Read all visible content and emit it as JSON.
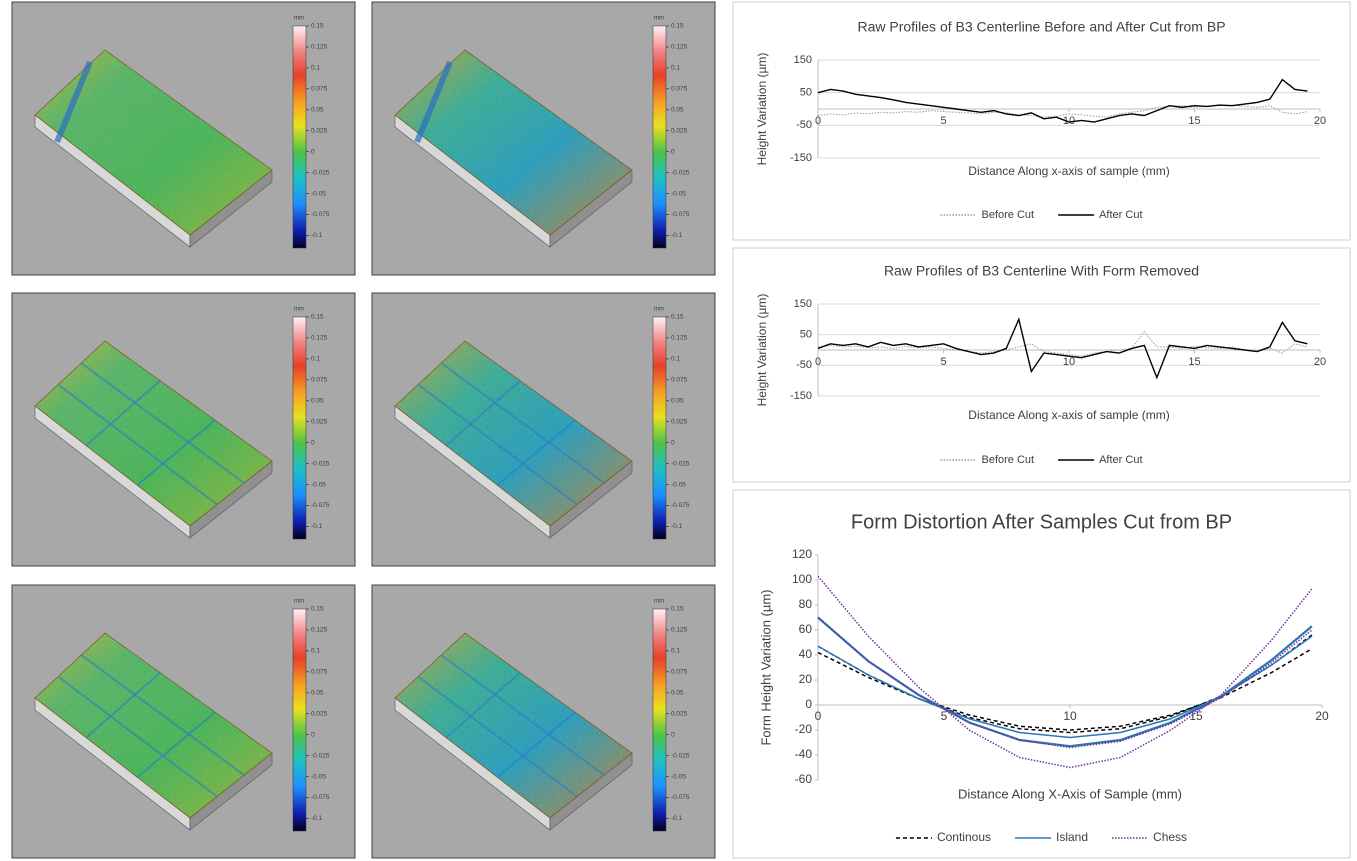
{
  "chart_data": [
    {
      "type": "surface",
      "colorbar_label": "mm",
      "clim": [
        -0.115,
        0.15
      ],
      "cticks": [
        0.15,
        0.125,
        0.1,
        0.075,
        0.05,
        0.025,
        0,
        -0.025,
        -0.05,
        -0.075,
        -0.1
      ]
    },
    {
      "type": "surface",
      "colorbar_label": "mm",
      "clim": [
        -0.115,
        0.15
      ],
      "cticks": [
        0.15,
        0.125,
        0.1,
        0.075,
        0.05,
        0.025,
        0,
        -0.025,
        -0.05,
        -0.075,
        -0.1
      ]
    },
    {
      "type": "surface",
      "colorbar_label": "mm",
      "clim": [
        -0.115,
        0.15
      ],
      "cticks": [
        0.15,
        0.125,
        0.1,
        0.075,
        0.05,
        0.025,
        0,
        -0.025,
        -0.05,
        -0.075,
        -0.1
      ]
    },
    {
      "type": "surface",
      "colorbar_label": "mm",
      "clim": [
        -0.115,
        0.15
      ],
      "cticks": [
        0.15,
        0.125,
        0.1,
        0.075,
        0.05,
        0.025,
        0,
        -0.025,
        -0.05,
        -0.075,
        -0.1
      ]
    },
    {
      "type": "surface",
      "colorbar_label": "mm",
      "clim": [
        -0.115,
        0.15
      ],
      "cticks": [
        0.15,
        0.125,
        0.1,
        0.075,
        0.05,
        0.025,
        0,
        -0.025,
        -0.05,
        -0.075,
        -0.1
      ]
    },
    {
      "type": "surface",
      "colorbar_label": "mm",
      "clim": [
        -0.115,
        0.15
      ],
      "cticks": [
        0.15,
        0.125,
        0.1,
        0.075,
        0.05,
        0.025,
        0,
        -0.025,
        -0.05,
        -0.075,
        -0.1
      ]
    },
    {
      "type": "line",
      "title": "Raw Profiles of B3 Centerline Before and After Cut from BP",
      "x_label": "Distance Along x-axis of sample (mm)",
      "y_label": "Height Variation (µm)",
      "x": [
        0,
        0.5,
        1,
        1.5,
        2,
        2.5,
        3,
        3.5,
        4,
        4.5,
        5,
        5.5,
        6,
        6.5,
        7,
        7.5,
        8,
        8.5,
        9,
        9.5,
        10,
        10.5,
        11,
        11.5,
        12,
        12.5,
        13,
        13.5,
        14,
        14.5,
        15,
        15.5,
        16,
        16.5,
        17,
        17.5,
        18,
        18.5,
        19,
        19.5
      ],
      "series": [
        {
          "name": "Before Cut",
          "color": "#999999",
          "style": "dotted",
          "values": [
            -20,
            -15,
            -18,
            -12,
            -15,
            -10,
            -12,
            -8,
            -10,
            -5,
            -8,
            -10,
            -12,
            -15,
            -10,
            -12,
            -18,
            -20,
            -25,
            -22,
            -15,
            -18,
            -22,
            -25,
            -15,
            -10,
            -5,
            5,
            8,
            10,
            5,
            8,
            10,
            12,
            8,
            5,
            10,
            -10,
            -15,
            -8
          ]
        },
        {
          "name": "After Cut",
          "color": "#000000",
          "style": "solid",
          "values": [
            50,
            60,
            55,
            45,
            40,
            35,
            28,
            20,
            15,
            10,
            5,
            0,
            -5,
            -10,
            -5,
            -15,
            -20,
            -12,
            -30,
            -25,
            -40,
            -35,
            -40,
            -30,
            -20,
            -15,
            -20,
            -5,
            10,
            5,
            10,
            8,
            12,
            10,
            15,
            20,
            30,
            90,
            60,
            55
          ]
        }
      ],
      "xlim": [
        0,
        20
      ],
      "xticks": [
        0,
        5,
        10,
        15,
        20
      ],
      "ylim": [
        -150,
        150
      ],
      "yticks": [
        -150,
        -50,
        50,
        150
      ],
      "grid": true
    },
    {
      "type": "line",
      "title": "Raw Profiles of B3 Centerline With Form Removed",
      "x_label": "Distance Along x-axis of sample (mm)",
      "y_label": "Height Variation (µm)",
      "x": [
        0,
        0.5,
        1,
        1.5,
        2,
        2.5,
        3,
        3.5,
        4,
        4.5,
        5,
        5.5,
        6,
        6.5,
        7,
        7.5,
        8,
        8.5,
        9,
        9.5,
        10,
        10.5,
        11,
        11.5,
        12,
        12.5,
        13,
        13.5,
        14,
        14.5,
        15,
        15.5,
        16,
        16.5,
        17,
        17.5,
        18,
        18.5,
        19,
        19.5
      ],
      "series": [
        {
          "name": "Before Cut",
          "color": "#999999",
          "style": "dotted",
          "values": [
            10,
            15,
            10,
            12,
            8,
            10,
            5,
            12,
            8,
            10,
            5,
            0,
            -5,
            -10,
            -5,
            0,
            10,
            20,
            -5,
            -10,
            -15,
            -20,
            -10,
            -5,
            0,
            5,
            60,
            10,
            10,
            5,
            12,
            8,
            5,
            10,
            0,
            -5,
            5,
            -10,
            20,
            10
          ]
        },
        {
          "name": "After Cut",
          "color": "#000000",
          "style": "solid",
          "values": [
            5,
            20,
            15,
            20,
            10,
            25,
            15,
            20,
            10,
            15,
            20,
            5,
            -5,
            -15,
            -10,
            5,
            100,
            -70,
            -10,
            -15,
            -20,
            -25,
            -15,
            -5,
            -10,
            5,
            15,
            -90,
            15,
            10,
            5,
            15,
            10,
            5,
            0,
            -5,
            10,
            90,
            30,
            20
          ]
        }
      ],
      "xlim": [
        0,
        20
      ],
      "xticks": [
        0,
        5,
        10,
        15,
        20
      ],
      "ylim": [
        -150,
        150
      ],
      "yticks": [
        -150,
        -50,
        50,
        150
      ],
      "grid": true
    },
    {
      "type": "form",
      "title": "Form Distortion After Samples Cut from BP",
      "x_label": "Distance Along X-Axis of Sample (mm)",
      "y_label": "Form Height Variation (µm)",
      "x": [
        0,
        2,
        4,
        6,
        8,
        10,
        12,
        14,
        16,
        18,
        19.6
      ],
      "series": [
        {
          "name": "Continous",
          "color": "#000000",
          "style": "dashed",
          "lines": [
            [
              42,
              22,
              5,
              -8,
              -17,
              -20,
              -17,
              -8,
              6,
              26,
              45
            ],
            [
              47,
              24,
              5,
              -10,
              -19,
              -22,
              -19,
              -9,
              7,
              32,
              56
            ]
          ]
        },
        {
          "name": "Island",
          "color": "#2e75b6",
          "style": "solid",
          "lines": [
            [
              70,
              35,
              8,
              -14,
              -28,
              -33,
              -28,
              -14,
              7,
              36,
              63
            ],
            [
              47,
              24,
              5,
              -11,
              -22,
              -26,
              -22,
              -11,
              7,
              32,
              55
            ]
          ]
        },
        {
          "name": "Chess",
          "color": "#7030a0",
          "style": "dotted",
          "lines": [
            [
              103,
              55,
              14,
              -20,
              -42,
              -50,
              -42,
              -20,
              8,
              52,
              93
            ],
            [
              70,
              35,
              8,
              -14,
              -28,
              -34,
              -29,
              -15,
              6,
              34,
              60
            ]
          ]
        }
      ],
      "xlim": [
        0,
        20
      ],
      "xticks": [
        0,
        5,
        10,
        15,
        20
      ],
      "ylim": [
        -60,
        120
      ],
      "yticks": [
        -60,
        -40,
        -20,
        0,
        20,
        40,
        60,
        80,
        100,
        120
      ],
      "grid": false
    }
  ]
}
